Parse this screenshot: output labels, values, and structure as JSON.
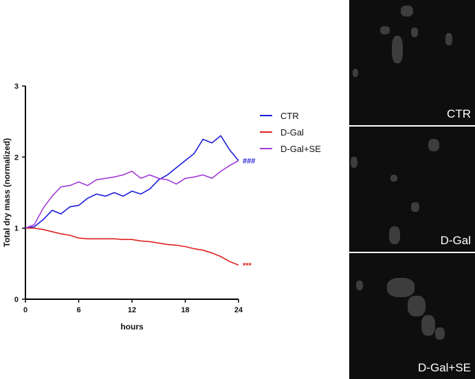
{
  "chart_data": {
    "type": "line",
    "xlabel": "hours",
    "ylabel": "Total dry mass (normalized)",
    "xlim": [
      0,
      24
    ],
    "ylim": [
      0,
      3
    ],
    "x_ticks": [
      "0",
      "6",
      "12",
      "18",
      "24"
    ],
    "y_ticks": [
      "0",
      "1",
      "2",
      "3"
    ],
    "legend_position": "right",
    "series": [
      {
        "name": "CTR",
        "color": "#1a1adb",
        "x": [
          0,
          1,
          2,
          3,
          4,
          5,
          6,
          7,
          8,
          9,
          10,
          11,
          12,
          13,
          14,
          15,
          16,
          17,
          18,
          19,
          20,
          21,
          22,
          23,
          24
        ],
        "y": [
          1.0,
          1.02,
          1.12,
          1.25,
          1.2,
          1.3,
          1.32,
          1.42,
          1.48,
          1.45,
          1.5,
          1.45,
          1.52,
          1.48,
          1.55,
          1.68,
          1.75,
          1.85,
          1.95,
          2.05,
          2.25,
          2.2,
          2.3,
          2.1,
          1.95
        ],
        "annotation": "###"
      },
      {
        "name": "D-Gal",
        "color": "#e02020",
        "x": [
          0,
          1,
          2,
          3,
          4,
          5,
          6,
          7,
          8,
          9,
          10,
          11,
          12,
          13,
          14,
          15,
          16,
          17,
          18,
          19,
          20,
          21,
          22,
          23,
          24
        ],
        "y": [
          1.0,
          1.0,
          0.98,
          0.95,
          0.92,
          0.9,
          0.86,
          0.85,
          0.85,
          0.85,
          0.85,
          0.84,
          0.84,
          0.82,
          0.81,
          0.79,
          0.77,
          0.76,
          0.74,
          0.71,
          0.69,
          0.65,
          0.6,
          0.53,
          0.48
        ],
        "annotation": "***"
      },
      {
        "name": "D-Gal+SE",
        "color": "#a23ad8",
        "x": [
          0,
          1,
          2,
          3,
          4,
          5,
          6,
          7,
          8,
          9,
          10,
          11,
          12,
          13,
          14,
          15,
          16,
          17,
          18,
          19,
          20,
          21,
          22,
          23,
          24
        ],
        "y": [
          1.0,
          1.05,
          1.28,
          1.45,
          1.58,
          1.6,
          1.65,
          1.6,
          1.68,
          1.7,
          1.72,
          1.75,
          1.8,
          1.7,
          1.75,
          1.7,
          1.68,
          1.62,
          1.7,
          1.72,
          1.75,
          1.7,
          1.8,
          1.88,
          1.95
        ]
      }
    ]
  },
  "legend": {
    "items": [
      "CTR",
      "D-Gal",
      "D-Gal+SE"
    ]
  },
  "panels": [
    {
      "label": "CTR"
    },
    {
      "label": "D-Gal"
    },
    {
      "label": "D-Gal+SE"
    }
  ]
}
